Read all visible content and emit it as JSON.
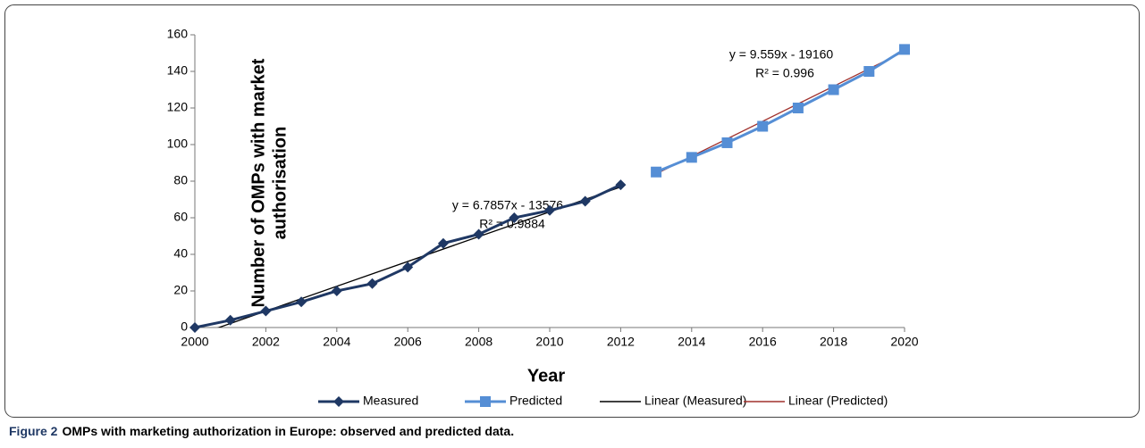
{
  "chart_data": {
    "type": "line",
    "y_label": [
      "Number of OMPs with market",
      "authorisation"
    ],
    "x_label": "Year",
    "xlim": [
      2000,
      2020
    ],
    "xticks": [
      2000,
      2002,
      2004,
      2006,
      2008,
      2010,
      2012,
      2014,
      2016,
      2018,
      2020
    ],
    "ylim": [
      0,
      160
    ],
    "yticks": [
      0,
      20,
      40,
      60,
      80,
      100,
      120,
      140,
      160
    ],
    "series": [
      {
        "name": "Measured",
        "color": "#1f3864",
        "marker": "diamond",
        "x": [
          2000,
          2001,
          2002,
          2003,
          2004,
          2005,
          2006,
          2007,
          2008,
          2009,
          2010,
          2011,
          2012
        ],
        "values": [
          0,
          4,
          9,
          14,
          20,
          24,
          33,
          46,
          51,
          60,
          64,
          69,
          78
        ]
      },
      {
        "name": "Predicted",
        "color": "#558ed5",
        "marker": "square",
        "x": [
          2013,
          2014,
          2015,
          2016,
          2017,
          2018,
          2019,
          2020
        ],
        "values": [
          85,
          93,
          101,
          110,
          120,
          130,
          140,
          152
        ]
      },
      {
        "name": "Linear (Measured)",
        "color": "#000000",
        "marker": "none",
        "x": [
          2000,
          2012
        ],
        "values": [
          -4.6,
          76.8
        ]
      },
      {
        "name": "Linear (Predicted)",
        "color": "#a0312d",
        "marker": "none",
        "x": [
          2013,
          2020
        ],
        "values": [
          84,
          151
        ]
      }
    ],
    "annotations": [
      {
        "text": "y = 6.7857x - 13576"
      },
      {
        "text": "R² = 0.9884"
      },
      {
        "text": "y = 9.559x - 19160"
      },
      {
        "text": "R² = 0.996"
      }
    ],
    "caption_label": "Figure 2",
    "caption": "OMPs with marketing authorization in Europe: observed and predicted data."
  }
}
